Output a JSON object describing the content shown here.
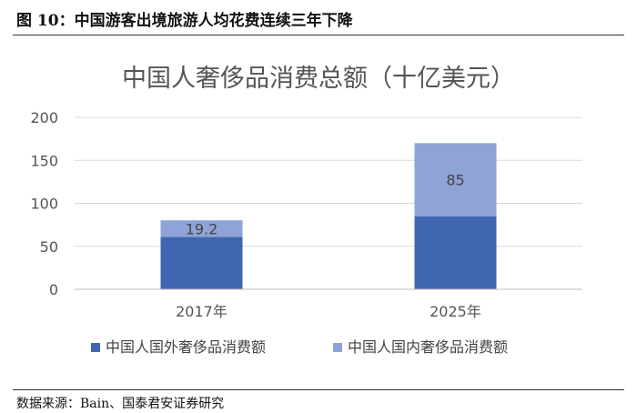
{
  "figure": {
    "caption": "图 10：中国游客出境旅游人均花费连续三年下降",
    "source": "数据来源：Bain、国泰君安证券研究"
  },
  "chart_data": {
    "type": "bar",
    "stacked": true,
    "title": "中国人奢侈品消费总额（十亿美元）",
    "categories": [
      "2017年",
      "2025年"
    ],
    "series": [
      {
        "name": "中国人国外奢侈品消费额",
        "values": [
          61,
          85
        ],
        "color": "#4166b0",
        "data_labels": [
          "",
          ""
        ]
      },
      {
        "name": "中国人国内奢侈品消费额",
        "values": [
          19.2,
          85
        ],
        "color": "#8ea3d6",
        "data_labels": [
          "19.2",
          "85"
        ]
      }
    ],
    "ylim": [
      0,
      200
    ],
    "yticks": [
      0,
      50,
      100,
      150,
      200
    ],
    "grid": true,
    "legend_position": "bottom"
  }
}
